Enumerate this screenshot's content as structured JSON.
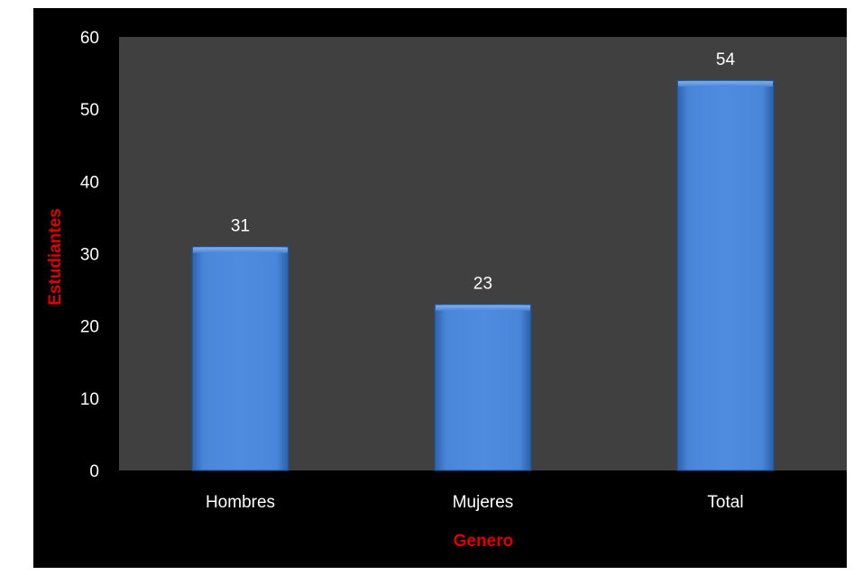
{
  "chart_data": {
    "type": "bar",
    "categories": [
      "Hombres",
      "Mujeres",
      "Total"
    ],
    "values": [
      31,
      23,
      54
    ],
    "data_labels": [
      "31",
      "23",
      "54"
    ],
    "xlabel": "Genero",
    "ylabel": "Estudiantes",
    "ylim": [
      0,
      60
    ],
    "yticks": [
      "0",
      "10",
      "20",
      "30",
      "40",
      "50",
      "60"
    ],
    "grid": false,
    "legend": "none",
    "colors": {
      "background": "#000000",
      "plot_area": "#404040",
      "bar": "#4a86d8",
      "bar_edge": "#1f4e8c",
      "axis_title": "#e00000",
      "text": "#ffffff"
    }
  }
}
